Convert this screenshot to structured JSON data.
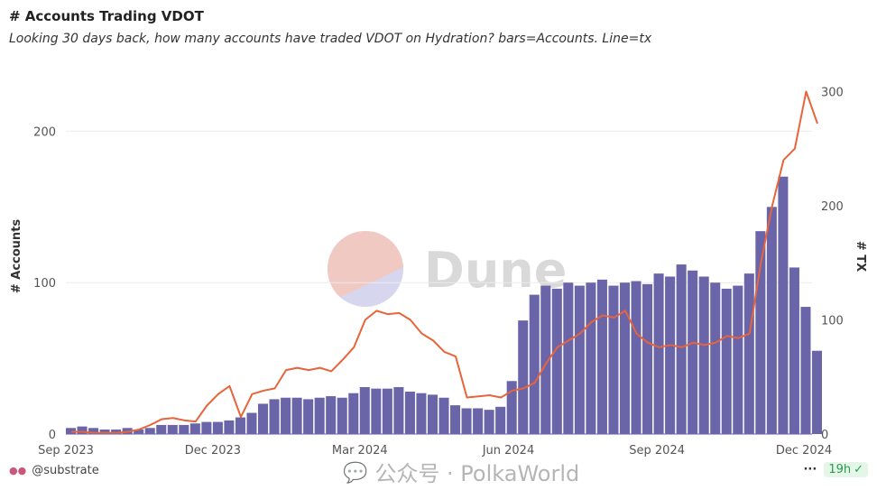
{
  "header": {
    "title": "# Accounts Trading VDOT",
    "subtitle": "Looking 30 days back, how many accounts have traded VDOT on Hydration? bars=Accounts. Line=tx"
  },
  "chart_data": {
    "type": "bar+line",
    "title": "# Accounts Trading VDOT",
    "ylabel": "# Accounts",
    "y2label": "# TX",
    "ylim": [
      0,
      236
    ],
    "y2lim": [
      0,
      313
    ],
    "yticks": [
      0,
      100,
      200
    ],
    "y2ticks": [
      0,
      100,
      200,
      300
    ],
    "xticks": [
      {
        "date": "2023-09-01",
        "label": "Sep 2023"
      },
      {
        "date": "2023-12-01",
        "label": "Dec 2023"
      },
      {
        "date": "2024-03-01",
        "label": "Mar 2024"
      },
      {
        "date": "2024-06-01",
        "label": "Jun 2024"
      },
      {
        "date": "2024-09-01",
        "label": "Sep 2024"
      },
      {
        "date": "2024-12-01",
        "label": "Dec 2024"
      }
    ],
    "grid": true,
    "x": [
      "2023-09-01",
      "2023-09-08",
      "2023-09-15",
      "2023-09-22",
      "2023-09-29",
      "2023-10-06",
      "2023-10-13",
      "2023-10-20",
      "2023-10-27",
      "2023-11-03",
      "2023-11-10",
      "2023-11-17",
      "2023-11-24",
      "2023-12-01",
      "2023-12-08",
      "2023-12-15",
      "2023-12-22",
      "2023-12-29",
      "2024-01-05",
      "2024-01-12",
      "2024-01-19",
      "2024-01-26",
      "2024-02-02",
      "2024-02-09",
      "2024-02-16",
      "2024-02-23",
      "2024-03-01",
      "2024-03-08",
      "2024-03-15",
      "2024-03-22",
      "2024-03-29",
      "2024-04-05",
      "2024-04-12",
      "2024-04-19",
      "2024-04-26",
      "2024-05-03",
      "2024-05-10",
      "2024-05-17",
      "2024-05-24",
      "2024-05-31",
      "2024-06-07",
      "2024-06-14",
      "2024-06-21",
      "2024-06-28",
      "2024-07-05",
      "2024-07-12",
      "2024-07-19",
      "2024-07-26",
      "2024-08-02",
      "2024-08-09",
      "2024-08-16",
      "2024-08-23",
      "2024-08-30",
      "2024-09-06",
      "2024-09-13",
      "2024-09-20",
      "2024-09-27",
      "2024-10-04",
      "2024-10-11",
      "2024-10-18",
      "2024-10-25",
      "2024-11-01",
      "2024-11-08",
      "2024-11-15",
      "2024-11-22",
      "2024-11-29",
      "2024-12-06"
    ],
    "series": [
      {
        "name": "Accounts",
        "type": "bar",
        "axis": "left",
        "color": "#6a64a8",
        "values": [
          4,
          5,
          4,
          3,
          3,
          4,
          3,
          4,
          6,
          6,
          6,
          7,
          8,
          8,
          9,
          11,
          14,
          20,
          23,
          24,
          24,
          23,
          24,
          25,
          24,
          27,
          31,
          30,
          30,
          31,
          28,
          27,
          26,
          24,
          19,
          17,
          17,
          16,
          18,
          35,
          75,
          92,
          98,
          96,
          100,
          98,
          100,
          102,
          98,
          100,
          101,
          99,
          106,
          104,
          112,
          108,
          104,
          100,
          96,
          98,
          106,
          134,
          150,
          170,
          110,
          84,
          55
        ]
      },
      {
        "name": "tx",
        "type": "line",
        "axis": "right",
        "color": "#e8643a",
        "values": [
          2,
          2,
          1,
          1,
          1,
          2,
          4,
          8,
          13,
          14,
          12,
          11,
          25,
          35,
          42,
          15,
          35,
          38,
          40,
          56,
          58,
          56,
          58,
          55,
          65,
          76,
          100,
          108,
          105,
          106,
          100,
          88,
          82,
          72,
          68,
          32,
          33,
          34,
          32,
          38,
          40,
          45,
          62,
          76,
          82,
          88,
          98,
          104,
          102,
          108,
          88,
          80,
          76,
          78,
          76,
          80,
          78,
          80,
          86,
          84,
          88,
          150,
          200,
          240,
          250,
          300,
          272
        ]
      }
    ]
  },
  "watermark": {
    "brand": "Dune",
    "wechat": "公众号 · PolkaWorld"
  },
  "footer": {
    "user": "@substrate",
    "more": "···",
    "age": "19h"
  },
  "colors": {
    "bars": "#6a64a8",
    "line": "#e8643a",
    "badge_bg": "#e3f6e8",
    "badge_fg": "#2e9a4f"
  }
}
